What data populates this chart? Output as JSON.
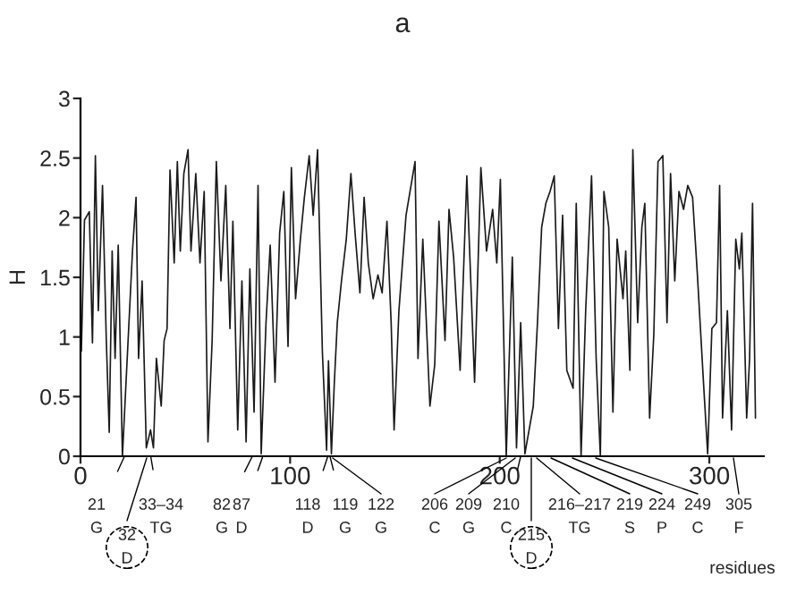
{
  "chart_data": {
    "type": "line",
    "title": "a",
    "xlabel": "residues",
    "ylabel": "H",
    "xlim": [
      0,
      326
    ],
    "xticks": [
      0,
      100,
      200,
      300
    ],
    "ylim": [
      0,
      3
    ],
    "yticks": [
      0,
      0.5,
      1,
      1.5,
      2,
      2.5,
      3
    ],
    "grid": false,
    "legend": false,
    "series": [
      {
        "color": "#1a1a1a",
        "x": [
          0.4,
          1.9,
          4.2,
          5.7,
          7.1,
          8.5,
          10.5,
          12.3,
          13.7,
          15.1,
          16.5,
          18,
          20,
          22,
          24.8,
          26.5,
          27.7,
          29.4,
          31.4,
          33.4,
          34.8,
          36.2,
          38.5,
          39.9,
          41.3,
          42.7,
          44.7,
          46.2,
          47.6,
          49.3,
          51.3,
          52.7,
          55,
          57,
          59,
          60.8,
          62.8,
          64.8,
          67,
          69.3,
          71.3,
          72.7,
          75,
          77,
          79,
          80.8,
          82.8,
          84.7,
          86.2,
          88.5,
          90.5,
          92.8,
          95,
          97,
          99,
          100.6,
          102.6,
          104.9,
          106.8,
          109.1,
          111,
          113.1,
          115.4,
          117.4,
          118.3,
          119.7,
          121.1,
          122.5,
          124.5,
          126.8,
          129,
          131,
          133.3,
          135.3,
          137.3,
          139.6,
          141.9,
          143.9,
          146.2,
          148.2,
          149.6,
          151.9,
          155.3,
          159.6,
          161,
          163.3,
          166.7,
          169,
          171,
          173.9,
          175.8,
          178,
          181.1,
          184.3,
          188,
          191,
          193.7,
          196.6,
          198.6,
          200.3,
          203.1,
          206,
          208,
          210,
          212,
          214,
          216,
          218,
          220,
          222,
          224,
          226,
          228,
          230,
          232,
          235,
          236.5,
          238.8,
          241,
          243.8,
          246,
          248,
          249.7,
          252,
          254,
          256,
          258.8,
          260.1,
          262.1,
          263.5,
          265.8,
          267.8,
          269.2,
          271.5,
          273.5,
          275.5,
          277.8,
          279.8,
          281.5,
          283.5,
          285.5,
          287.7,
          289.7,
          292,
          294.3,
          297.2,
          299.2,
          301.2,
          303.4,
          304.9,
          306.3,
          308.6,
          310.6,
          312.6,
          314.3,
          315.5,
          317.8,
          319.2,
          320.6,
          322
        ],
        "values": [
          0.88,
          1.98,
          2.05,
          0.95,
          2.52,
          1.22,
          2.27,
          0.98,
          0.2,
          1.72,
          0.82,
          1.77,
          0,
          0.72,
          1.72,
          2.17,
          0.82,
          1.47,
          0.07,
          0.22,
          0.07,
          0.82,
          0.42,
          0.97,
          1.07,
          2.4,
          1.62,
          2.47,
          1.72,
          2.37,
          2.57,
          1.72,
          2.37,
          1.62,
          2.22,
          0.12,
          0.97,
          2.47,
          1.47,
          2.27,
          1.07,
          1.97,
          0.22,
          1.47,
          0.12,
          1.57,
          0.37,
          2.27,
          0.02,
          1.12,
          1.77,
          0.62,
          1.87,
          2.22,
          0.92,
          2.42,
          1.32,
          1.82,
          2.17,
          2.52,
          2.02,
          2.57,
          0.87,
          0.05,
          0.8,
          0.02,
          0.62,
          1.12,
          1.47,
          1.82,
          2.37,
          1.87,
          1.37,
          2.17,
          1.62,
          1.32,
          1.52,
          1.37,
          1.97,
          1.12,
          0.22,
          1.22,
          2.02,
          2.47,
          0.82,
          1.82,
          0.42,
          0.77,
          1.97,
          0.97,
          2.07,
          1.67,
          0.72,
          2.35,
          0.62,
          2.42,
          1.72,
          2.07,
          1.62,
          2.32,
          0,
          1.67,
          0.07,
          1.12,
          0.02,
          0.22,
          0.42,
          1.12,
          1.92,
          2.12,
          2.22,
          2.35,
          1.07,
          2.02,
          0.72,
          0.57,
          2.12,
          0,
          1.22,
          2.35,
          0.82,
          0,
          2.22,
          1.92,
          0.37,
          1.82,
          1.32,
          1.72,
          0.72,
          2.57,
          1.12,
          1.92,
          2.12,
          0.32,
          1.02,
          2.47,
          2.52,
          1.12,
          2.37,
          1.47,
          2.22,
          2.07,
          2.27,
          2.17,
          1.52,
          0.62,
          0.02,
          1.07,
          1.12,
          2.27,
          0.32,
          1.22,
          0.22,
          1.82,
          1.57,
          1.87,
          0.32,
          0.82,
          2.12,
          0.32
        ]
      }
    ],
    "annotations": [
      {
        "text": "21\nG",
        "x": 21,
        "y": 0
      },
      "32\nD",
      {
        "text": "33–34\nTG",
        "x": 33.5,
        "y": 0
      },
      {
        "text": "82\nG",
        "x": 82,
        "y": 0
      },
      {
        "text": "87\nD",
        "x": 87,
        "y": 0
      },
      {
        "text": "118\nD",
        "x": 118,
        "y": 0
      },
      {
        "text": "119\nG",
        "x": 119,
        "y": 0
      },
      "122\nG",
      "206\nC",
      "209\nG",
      {
        "text": "210\nC",
        "x": 210,
        "y": 0
      },
      "215\nD",
      "216–217\nTG",
      "219\nS",
      "224\nP",
      "249\nC",
      "305\nF"
    ]
  }
}
